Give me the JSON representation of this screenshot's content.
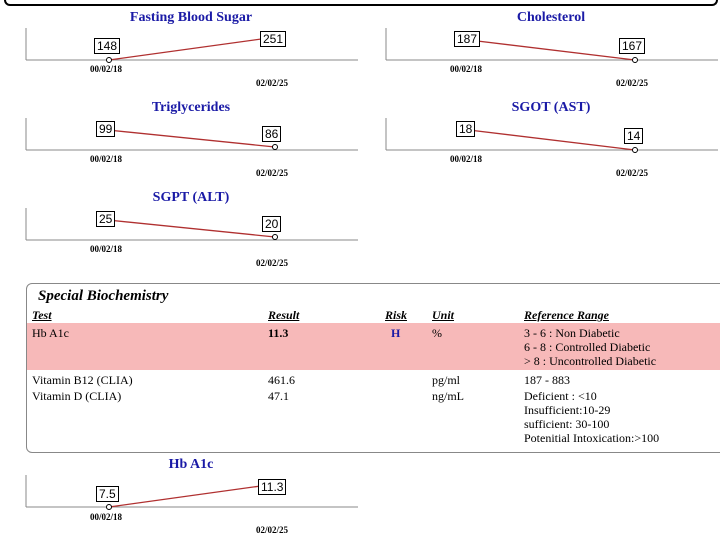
{
  "mini_charts": [
    {
      "title": "Fasting Blood Sugar",
      "dates": [
        "00/02/18",
        "02/02/25"
      ],
      "values": [
        "148",
        "251"
      ]
    },
    {
      "title": "Cholesterol",
      "dates": [
        "00/02/18",
        "02/02/25"
      ],
      "values": [
        "187",
        "167"
      ]
    },
    {
      "title": "Triglycerides",
      "dates": [
        "00/02/18",
        "02/02/25"
      ],
      "values": [
        "99",
        "86"
      ]
    },
    {
      "title": "SGOT (AST)",
      "dates": [
        "00/02/18",
        "02/02/25"
      ],
      "values": [
        "18",
        "14"
      ]
    },
    {
      "title": "SGPT (ALT)",
      "dates": [
        "00/02/18",
        "02/02/25"
      ],
      "values": [
        "25",
        "20"
      ]
    },
    {
      "title": "Hb A1c",
      "dates": [
        "00/02/18",
        "02/02/25"
      ],
      "values": [
        "7.5",
        "11.3"
      ]
    }
  ],
  "section": {
    "title": "Special Biochemistry",
    "headers": {
      "test": "Test",
      "result": "Result",
      "risk": "Risk",
      "unit": "Unit",
      "reference": "Reference Range"
    },
    "rows": [
      {
        "test": "Hb A1c",
        "result": "11.3",
        "risk": "H",
        "unit": "%",
        "reference": [
          "3 - 6  : Non Diabetic",
          "6 - 8  : Controlled Diabetic",
          "> 8   : Uncontrolled Diabetic"
        ]
      },
      {
        "test": "Vitamin B12 (CLIA)",
        "result": "461.6",
        "risk": "",
        "unit": "pg/ml",
        "reference": [
          "187 - 883"
        ]
      },
      {
        "test": "Vitamin D (CLIA)",
        "result": "47.1",
        "risk": "",
        "unit": "ng/mL",
        "reference": [
          "Deficient :   <10",
          "Insufficient:10-29",
          "sufficient:  30-100",
          "Potenitial Intoxication:>100"
        ]
      }
    ]
  },
  "colors": {
    "title_blue": "#1a1aa6",
    "trend_line": "#b03030",
    "highlight": "#f7b9b9"
  }
}
